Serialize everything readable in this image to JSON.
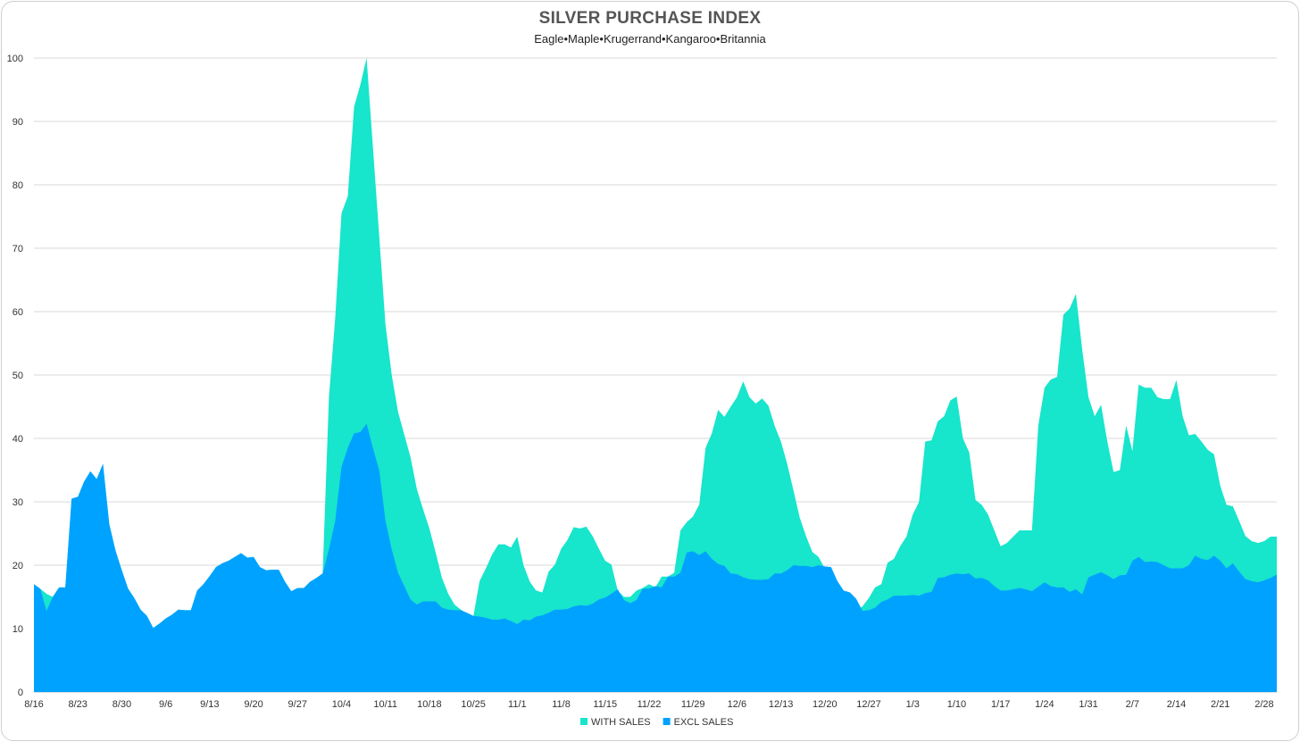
{
  "chart_data": {
    "type": "area",
    "title": "SILVER PURCHASE INDEX",
    "subtitle": "Eagle•Maple•Krugerrand•Kangaroo•Britannia",
    "ylim": [
      0,
      100
    ],
    "y_ticks": [
      0,
      10,
      20,
      30,
      40,
      50,
      60,
      70,
      80,
      90,
      100
    ],
    "x_tick_labels": [
      "8/16",
      "8/23",
      "8/30",
      "9/6",
      "9/13",
      "9/20",
      "9/27",
      "10/4",
      "10/11",
      "10/18",
      "10/25",
      "11/1",
      "11/8",
      "11/15",
      "11/22",
      "11/29",
      "12/6",
      "12/13",
      "12/20",
      "12/27",
      "1/3",
      "1/10",
      "1/17",
      "1/24",
      "1/31",
      "2/7",
      "2/14",
      "2/21",
      "2/28"
    ],
    "grid": true,
    "legend": "bottom",
    "colors": {
      "with_sales": "#17e5cc",
      "excl_sales": "#00a2ff"
    },
    "series": [
      {
        "name": "WITH SALES",
        "values": [
          17,
          16.3,
          15.5,
          15,
          16.5,
          16.5,
          30.5,
          30.8,
          33.2,
          34.8,
          33.6,
          36,
          26.5,
          22.3,
          19.2,
          16.3,
          14.8,
          13,
          12,
          10.1,
          10.8,
          11.6,
          12.2,
          13,
          12.9,
          12.9,
          16,
          17,
          18.3,
          19.7,
          20.3,
          20.7,
          21.3,
          21.9,
          21.2,
          21.3,
          19.7,
          19.2,
          19.3,
          19.3,
          17.4,
          15.9,
          16.4,
          16.4,
          17.4,
          18,
          18.7,
          46.5,
          59,
          75.5,
          78.2,
          92.3,
          95.8,
          100,
          86,
          72,
          58,
          50,
          44.2,
          40.6,
          37,
          32,
          28.8,
          25.8,
          22,
          18,
          15.5,
          13.8,
          13,
          12.4,
          11.9,
          17.5,
          19.5,
          21.7,
          23.3,
          23.3,
          22.8,
          24.5,
          20,
          17.4,
          16,
          15.7,
          19,
          20.1,
          22.6,
          24,
          26,
          25.8,
          26.1,
          24.6,
          22.6,
          20.7,
          20.1,
          16,
          15,
          15,
          16,
          16.4,
          17,
          16.5,
          18.2,
          18.2,
          18.8,
          25.5,
          26.8,
          27.7,
          29.6,
          38.5,
          40.8,
          44.5,
          43.4,
          45,
          46.5,
          49,
          46.5,
          45.5,
          46.3,
          45.2,
          42,
          39.5,
          36,
          31.8,
          27.5,
          24.6,
          22.1,
          21.3,
          19.5,
          17.5,
          16,
          15.7,
          14.7,
          12.8,
          13.5,
          14.8,
          16.5,
          17,
          20.4,
          21,
          23,
          24.5,
          28,
          30,
          39.5,
          39.7,
          42.7,
          43.5,
          46,
          46.6,
          40,
          37.8,
          30.3,
          29.5,
          28,
          25.5,
          23,
          23.5,
          24.5,
          25.5,
          25.5,
          25.5,
          42,
          48,
          49.3,
          49.7,
          59.5,
          60.5,
          62.8,
          54,
          46.5,
          43.5,
          45.3,
          39.5,
          34.7,
          35,
          42,
          38,
          48.5,
          48,
          48,
          46.5,
          46.2,
          46.2,
          49.2,
          43.5,
          40.5,
          40.7,
          39.5,
          38.2,
          37.5,
          32.5,
          29.5,
          29.3,
          27,
          24.6,
          23.8,
          23.5,
          23.8,
          24.5,
          24.5
        ],
        "color": "#17e5cc"
      },
      {
        "name": "EXCL SALES",
        "values": [
          17,
          16.3,
          12.8,
          15,
          16.5,
          16.5,
          30.5,
          30.8,
          33.2,
          34.8,
          33.6,
          36,
          26.5,
          22.3,
          19.2,
          16.3,
          14.8,
          13,
          12,
          10.1,
          10.8,
          11.6,
          12.2,
          13,
          12.9,
          12.9,
          16,
          17,
          18.3,
          19.7,
          20.3,
          20.7,
          21.3,
          21.9,
          21.2,
          21.3,
          19.7,
          19.2,
          19.3,
          19.3,
          17.4,
          15.9,
          16.4,
          16.4,
          17.4,
          18,
          18.7,
          22.5,
          27,
          35.5,
          38.5,
          40.8,
          41,
          42.3,
          38.5,
          35,
          27,
          22.5,
          18.8,
          16.7,
          14.6,
          13.8,
          14.3,
          14.3,
          14.3,
          13.3,
          13,
          12.9,
          12.9,
          12.5,
          12,
          11.9,
          11.7,
          11.4,
          11.4,
          11.6,
          11.2,
          10.7,
          11.4,
          11.3,
          11.9,
          12.1,
          12.5,
          13,
          13,
          13.1,
          13.5,
          13.7,
          13.6,
          13.9,
          14.6,
          14.9,
          15.5,
          16.2,
          14.5,
          14,
          14.5,
          16.3,
          16.3,
          16.7,
          16.5,
          18.2,
          18.2,
          18.8,
          22,
          22.2,
          21.6,
          22.2,
          21,
          20.2,
          19.9,
          18.7,
          18.6,
          18.1,
          17.8,
          17.7,
          17.7,
          17.8,
          18.7,
          18.7,
          19.2,
          20,
          19.9,
          19.9,
          19.7,
          20,
          19.8,
          19.7,
          17.5,
          16,
          15.7,
          14.7,
          12.8,
          12.9,
          13.3,
          14.2,
          14.6,
          15.2,
          15.2,
          15.2,
          15.3,
          15.2,
          15.6,
          15.8,
          18,
          18.1,
          18.5,
          18.7,
          18.6,
          18.7,
          17.9,
          18,
          17.6,
          16.7,
          16,
          16,
          16.2,
          16.4,
          16.2,
          15.9,
          16.6,
          17.3,
          16.7,
          16.5,
          16.5,
          15.8,
          16.2,
          15.4,
          18.1,
          18.5,
          18.9,
          18.4,
          17.8,
          18.4,
          18.5,
          20.7,
          21.3,
          20.5,
          20.6,
          20.5,
          20,
          19.5,
          19.5,
          19.5,
          20,
          21.5,
          21,
          20.8,
          21.5,
          20.7,
          19.5,
          20.3,
          19,
          17.8,
          17.5,
          17.3,
          17.6,
          18,
          18.5
        ],
        "color": "#00a2ff"
      }
    ]
  }
}
